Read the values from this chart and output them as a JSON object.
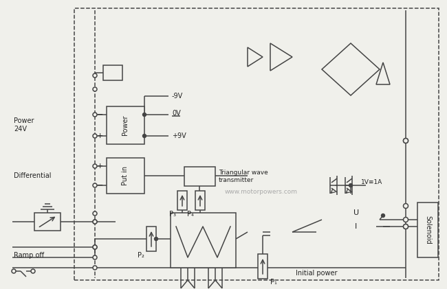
{
  "bg_color": "#f0f0eb",
  "line_color": "#444444",
  "lw": 1.1,
  "watermark": "www.motorpowers.com",
  "labels": {
    "ramp_off": "Ramp off",
    "differential": "Differential",
    "power_24v": "Power\n24V",
    "initial_power": "Initial power",
    "triangular_wave": "Triangular wave\ntransmitter",
    "solenoid": "Solenoid",
    "plus9v": "+9V",
    "minus9v": "-9V",
    "ov": "0V",
    "p1": "P₁",
    "p2": "P₂",
    "p3": "P₃",
    "p4": "P₄",
    "put_in": "Put in",
    "power_box": "Power",
    "current": "1V≡1A"
  }
}
